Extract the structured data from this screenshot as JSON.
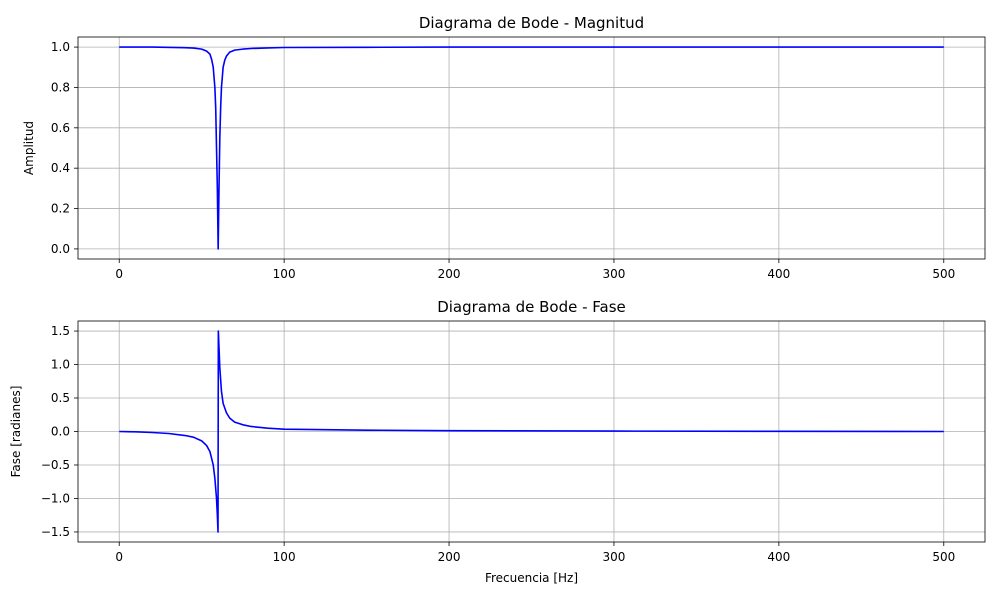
{
  "chart_data": [
    {
      "type": "line",
      "title": "Diagrama de Bode - Magnitud",
      "xlabel": "",
      "ylabel": "Amplitud",
      "xlim": [
        -25,
        525
      ],
      "ylim": [
        -0.05,
        1.05
      ],
      "xticks": [
        0,
        100,
        200,
        300,
        400,
        500
      ],
      "xtick_labels": [
        "0",
        "100",
        "200",
        "300",
        "400",
        "500"
      ],
      "yticks": [
        0.0,
        0.2,
        0.4,
        0.6,
        0.8,
        1.0
      ],
      "ytick_labels": [
        "0.0",
        "0.2",
        "0.4",
        "0.6",
        "0.8",
        "1.0"
      ],
      "grid": true,
      "color": "#0000ff",
      "series": [
        {
          "x": [
            0,
            20,
            40,
            45,
            50,
            53,
            55,
            56,
            57,
            58,
            58.5,
            59,
            59.5,
            60,
            60.5,
            61,
            61.5,
            62,
            63,
            64,
            65,
            67,
            70,
            75,
            80,
            90,
            100,
            150,
            200,
            300,
            400,
            500
          ],
          "y": [
            1.0,
            1.0,
            0.997,
            0.995,
            0.99,
            0.98,
            0.965,
            0.94,
            0.9,
            0.8,
            0.7,
            0.5,
            0.3,
            0.0,
            0.3,
            0.55,
            0.7,
            0.8,
            0.9,
            0.935,
            0.955,
            0.975,
            0.985,
            0.99,
            0.993,
            0.996,
            0.998,
            0.999,
            1.0,
            1.0,
            1.0,
            1.0
          ]
        }
      ]
    },
    {
      "type": "line",
      "title": "Diagrama de Bode - Fase",
      "xlabel": "Frecuencia [Hz]",
      "ylabel": "Fase [radianes]",
      "xlim": [
        -25,
        525
      ],
      "ylim": [
        -1.65,
        1.65
      ],
      "xticks": [
        0,
        100,
        200,
        300,
        400,
        500
      ],
      "xtick_labels": [
        "0",
        "100",
        "200",
        "300",
        "400",
        "500"
      ],
      "yticks": [
        -1.5,
        -1.0,
        -0.5,
        0.0,
        0.5,
        1.0,
        1.5
      ],
      "ytick_labels": [
        "−1.5",
        "−1.0",
        "−0.5",
        "0.0",
        "0.5",
        "1.0",
        "1.5"
      ],
      "grid": true,
      "color": "#0000ff",
      "series": [
        {
          "x": [
            0,
            10,
            20,
            30,
            40,
            45,
            50,
            53,
            55,
            57,
            58,
            59,
            59.5,
            59.9,
            60,
            60.1,
            60.5,
            61,
            62,
            63,
            65,
            67,
            70,
            75,
            80,
            90,
            100,
            150,
            200,
            300,
            400,
            500
          ],
          "y": [
            0.0,
            -0.005,
            -0.015,
            -0.03,
            -0.06,
            -0.085,
            -0.14,
            -0.21,
            -0.3,
            -0.5,
            -0.7,
            -1.0,
            -1.25,
            -1.5,
            0.0,
            1.5,
            1.25,
            0.95,
            0.6,
            0.42,
            0.28,
            0.2,
            0.14,
            0.1,
            0.075,
            0.05,
            0.035,
            0.02,
            0.012,
            0.006,
            0.003,
            0.0
          ]
        }
      ]
    }
  ]
}
